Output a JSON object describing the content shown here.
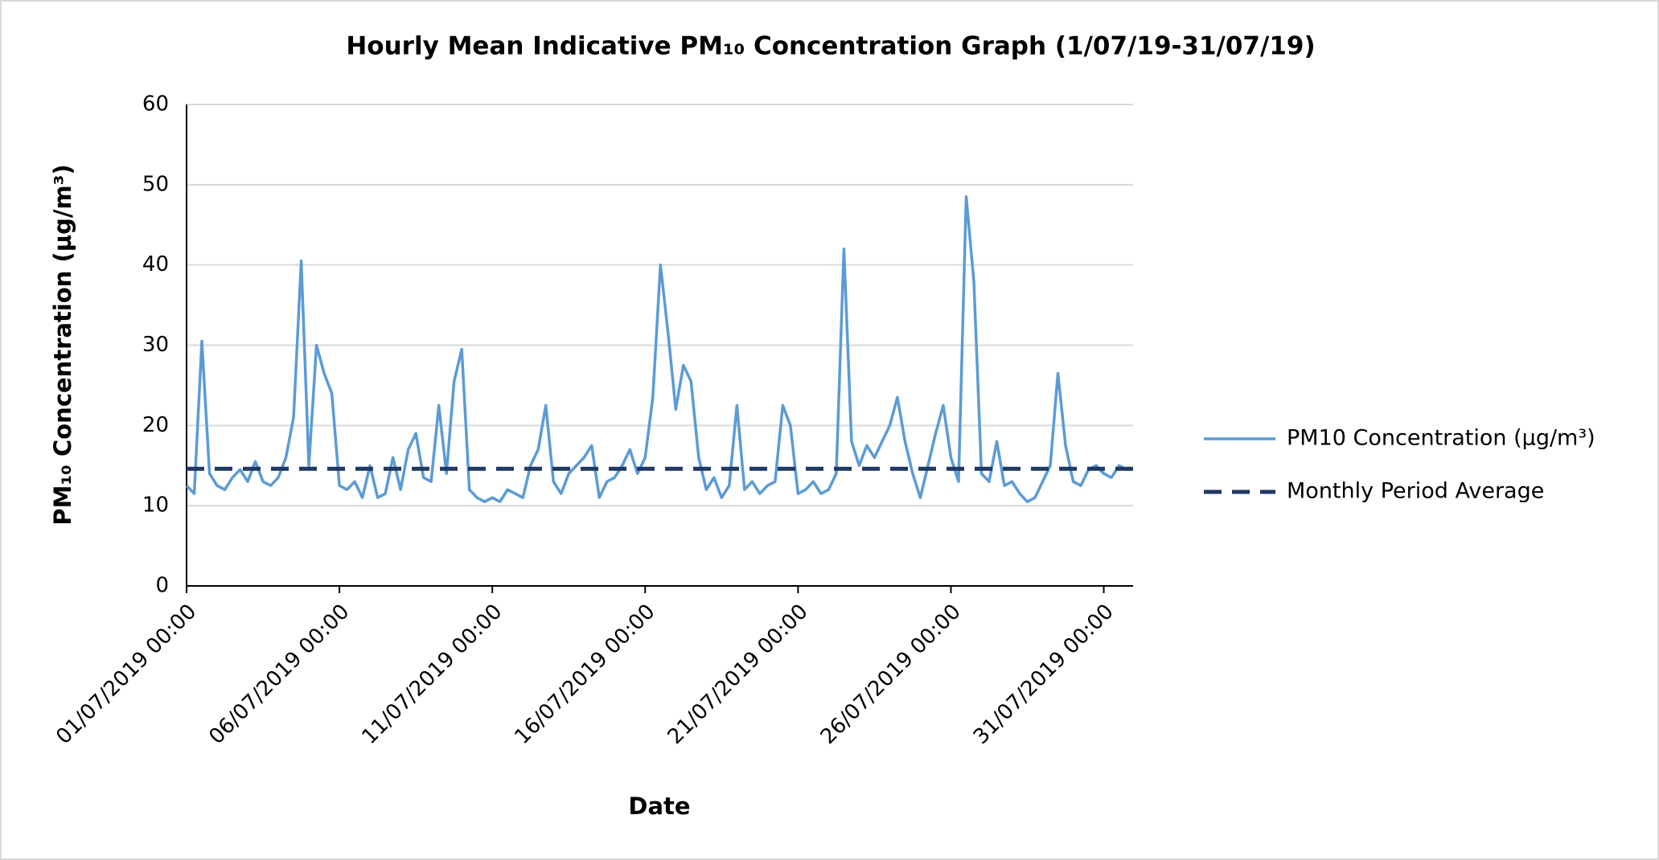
{
  "chart_data": {
    "type": "line",
    "title": "Hourly Mean Indicative PM₁₀ Concentration Graph (1/07/19-31/07/19)",
    "x_label": "Date",
    "y_label": "PM₁₀ Concentration (µg/m³)",
    "x": [
      "01/07/2019 00:00",
      "01/07/2019 06:00",
      "01/07/2019 12:00",
      "01/07/2019 18:00",
      "02/07/2019 00:00",
      "02/07/2019 06:00",
      "02/07/2019 12:00",
      "02/07/2019 18:00",
      "03/07/2019 00:00",
      "03/07/2019 06:00",
      "03/07/2019 12:00",
      "03/07/2019 18:00",
      "04/07/2019 00:00",
      "04/07/2019 06:00",
      "04/07/2019 12:00",
      "04/07/2019 18:00",
      "05/07/2019 00:00",
      "05/07/2019 06:00",
      "05/07/2019 12:00",
      "05/07/2019 18:00",
      "06/07/2019 00:00",
      "06/07/2019 06:00",
      "06/07/2019 12:00",
      "06/07/2019 18:00",
      "07/07/2019 00:00",
      "07/07/2019 06:00",
      "07/07/2019 12:00",
      "07/07/2019 18:00",
      "08/07/2019 00:00",
      "08/07/2019 06:00",
      "08/07/2019 12:00",
      "08/07/2019 18:00",
      "09/07/2019 00:00",
      "09/07/2019 06:00",
      "09/07/2019 12:00",
      "09/07/2019 18:00",
      "10/07/2019 00:00",
      "10/07/2019 06:00",
      "10/07/2019 12:00",
      "10/07/2019 18:00",
      "11/07/2019 00:00",
      "11/07/2019 06:00",
      "11/07/2019 12:00",
      "11/07/2019 18:00",
      "12/07/2019 00:00",
      "12/07/2019 06:00",
      "12/07/2019 12:00",
      "12/07/2019 18:00",
      "13/07/2019 00:00",
      "13/07/2019 06:00",
      "13/07/2019 12:00",
      "13/07/2019 18:00",
      "14/07/2019 00:00",
      "14/07/2019 06:00",
      "14/07/2019 12:00",
      "14/07/2019 18:00",
      "15/07/2019 00:00",
      "15/07/2019 06:00",
      "15/07/2019 12:00",
      "15/07/2019 18:00",
      "16/07/2019 00:00",
      "16/07/2019 06:00",
      "16/07/2019 12:00",
      "16/07/2019 18:00",
      "17/07/2019 00:00",
      "17/07/2019 06:00",
      "17/07/2019 12:00",
      "17/07/2019 18:00",
      "18/07/2019 00:00",
      "18/07/2019 06:00",
      "18/07/2019 12:00",
      "18/07/2019 18:00",
      "19/07/2019 00:00",
      "19/07/2019 06:00",
      "19/07/2019 12:00",
      "19/07/2019 18:00",
      "20/07/2019 00:00",
      "20/07/2019 06:00",
      "20/07/2019 12:00",
      "20/07/2019 18:00",
      "21/07/2019 00:00",
      "21/07/2019 06:00",
      "21/07/2019 12:00",
      "21/07/2019 18:00",
      "22/07/2019 00:00",
      "22/07/2019 06:00",
      "22/07/2019 12:00",
      "22/07/2019 18:00",
      "23/07/2019 00:00",
      "23/07/2019 06:00",
      "23/07/2019 12:00",
      "23/07/2019 18:00",
      "24/07/2019 00:00",
      "24/07/2019 06:00",
      "24/07/2019 12:00",
      "24/07/2019 18:00",
      "25/07/2019 00:00",
      "25/07/2019 06:00",
      "25/07/2019 12:00",
      "25/07/2019 18:00",
      "26/07/2019 00:00",
      "26/07/2019 06:00",
      "26/07/2019 12:00",
      "26/07/2019 18:00",
      "27/07/2019 00:00",
      "27/07/2019 06:00",
      "27/07/2019 12:00",
      "27/07/2019 18:00",
      "28/07/2019 00:00",
      "28/07/2019 06:00",
      "28/07/2019 12:00",
      "28/07/2019 18:00",
      "29/07/2019 00:00",
      "29/07/2019 06:00",
      "29/07/2019 12:00",
      "29/07/2019 18:00",
      "30/07/2019 00:00",
      "30/07/2019 06:00",
      "30/07/2019 12:00",
      "30/07/2019 18:00",
      "31/07/2019 00:00",
      "31/07/2019 06:00",
      "31/07/2019 12:00",
      "31/07/2019 18:00"
    ],
    "series": [
      {
        "name": "PM10 Concentration (µg/m³)",
        "color": "#5b9bd5",
        "values": [
          12.5,
          11.5,
          30.5,
          14,
          12.5,
          12,
          13.5,
          14.5,
          13,
          15.5,
          13,
          12.5,
          13.5,
          16,
          21,
          40.5,
          15,
          30,
          26.5,
          24,
          12.5,
          12,
          13,
          11,
          15,
          11,
          11.5,
          16,
          12,
          17,
          19,
          13.5,
          13,
          22.5,
          14,
          25.5,
          29.5,
          12,
          11,
          10.5,
          11,
          10.5,
          12,
          11.5,
          11,
          15,
          17,
          22.5,
          13,
          11.5,
          14,
          15,
          16,
          17.5,
          11,
          13,
          13.5,
          15,
          17,
          14,
          16,
          23.5,
          40,
          31.5,
          22,
          27.5,
          25.5,
          16,
          12,
          13.5,
          11,
          12.5,
          22.5,
          12,
          13,
          11.5,
          12.5,
          13,
          22.5,
          20,
          11.5,
          12,
          13,
          11.5,
          12,
          14,
          42,
          18,
          15,
          17.5,
          16,
          18,
          20,
          23.5,
          18,
          14,
          11,
          15,
          19,
          22.5,
          16,
          13,
          48.5,
          38,
          14,
          13,
          18,
          12.5,
          13,
          11.5,
          10.5,
          11,
          13,
          15,
          26.5,
          17.5,
          13,
          12.5,
          14.5,
          15,
          14,
          13.5,
          15,
          14.5
        ]
      }
    ],
    "average": {
      "name": "Monthly Period Average",
      "color": "#1f3864",
      "value": 14.6
    },
    "xlim": [
      "01/07/2019 00:00",
      "31/07/2019 23:00"
    ],
    "xticks": [
      "01/07/2019 00:00",
      "06/07/2019 00:00",
      "11/07/2019 00:00",
      "16/07/2019 00:00",
      "21/07/2019 00:00",
      "26/07/2019 00:00",
      "31/07/2019 00:00"
    ],
    "ylim": [
      0,
      60
    ],
    "yticks": [
      0,
      10,
      20,
      30,
      40,
      50,
      60
    ],
    "grid": true,
    "legend": "right"
  }
}
